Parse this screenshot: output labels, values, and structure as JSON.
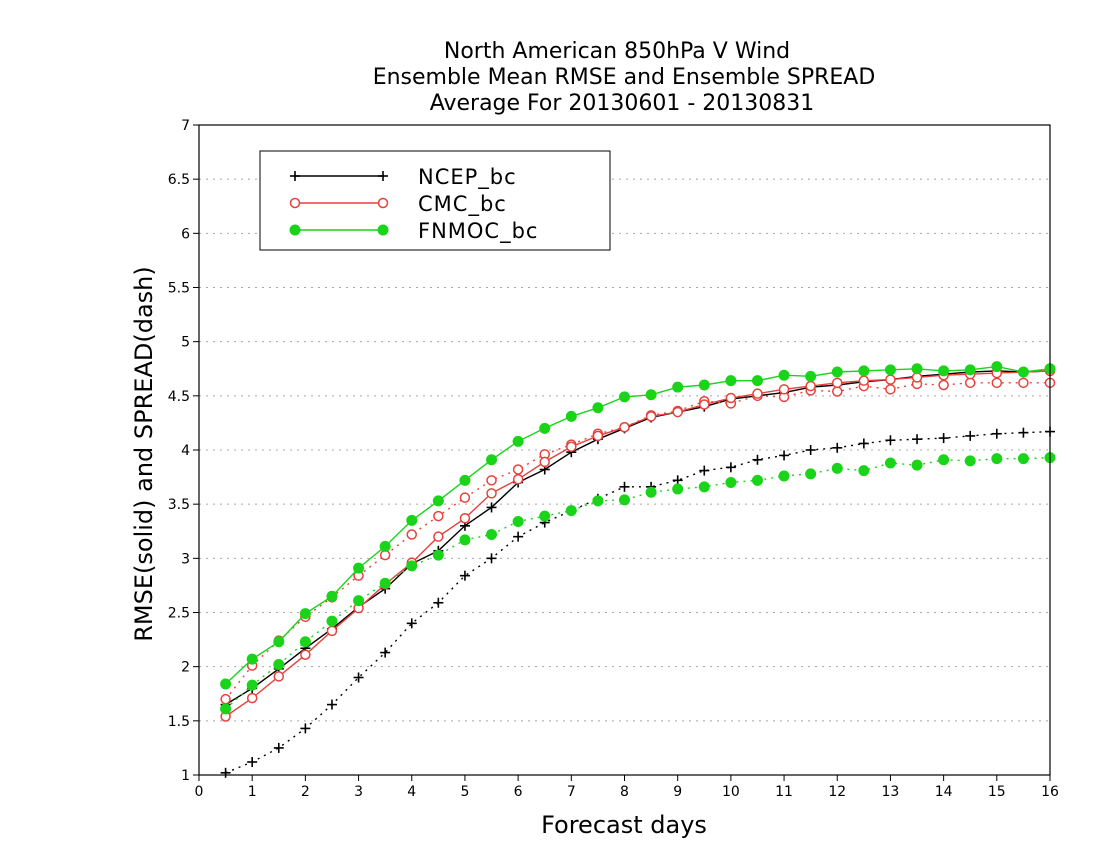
{
  "title_lines": [
    "North American 850hPa V Wind",
    "Ensemble Mean RMSE and Ensemble SPREAD",
    "Average For 20130601 - 20130831"
  ],
  "chart_data": {
    "type": "line",
    "title": "North American 850hPa V Wind / Ensemble Mean RMSE and Ensemble SPREAD / Average For 20130601 - 20130831",
    "xlabel": "Forecast days",
    "ylabel": "RMSE(solid) and SPREAD(dash)",
    "xlim": [
      0,
      16
    ],
    "ylim": [
      1,
      7
    ],
    "x_ticks": [
      "0",
      "1",
      "2",
      "3",
      "4",
      "5",
      "6",
      "7",
      "8",
      "9",
      "10",
      "11",
      "12",
      "13",
      "14",
      "15",
      "16"
    ],
    "y_ticks": [
      "1",
      "1.5",
      "2",
      "2.5",
      "3",
      "3.5",
      "4",
      "4.5",
      "5",
      "5.5",
      "6",
      "6.5",
      "7"
    ],
    "grid": "horizontal dotted",
    "legend_position": "top-left",
    "x": [
      0.5,
      1,
      1.5,
      2,
      2.5,
      3,
      3.5,
      4,
      4.5,
      5,
      5.5,
      6,
      6.5,
      7,
      7.5,
      8,
      8.5,
      9,
      9.5,
      10,
      10.5,
      11,
      11.5,
      12,
      12.5,
      13,
      13.5,
      14,
      14.5,
      15,
      15.5,
      16
    ],
    "series": [
      {
        "name": "NCEP_bc",
        "color": "#000000",
        "marker": "plus",
        "rmse": [
          1.65,
          1.8,
          1.98,
          2.17,
          2.35,
          2.55,
          2.72,
          2.95,
          3.07,
          3.3,
          3.47,
          3.7,
          3.82,
          3.98,
          4.1,
          4.2,
          4.3,
          4.35,
          4.4,
          4.47,
          4.5,
          4.53,
          4.58,
          4.6,
          4.63,
          4.65,
          4.68,
          4.7,
          4.72,
          4.73,
          4.72,
          4.73
        ],
        "spread": [
          1.02,
          1.12,
          1.25,
          1.43,
          1.65,
          1.9,
          2.13,
          2.4,
          2.59,
          2.84,
          3.0,
          3.2,
          3.33,
          3.44,
          3.55,
          3.66,
          3.66,
          3.72,
          3.81,
          3.84,
          3.91,
          3.95,
          4.0,
          4.02,
          4.06,
          4.09,
          4.1,
          4.11,
          4.13,
          4.15,
          4.16,
          4.17
        ]
      },
      {
        "name": "CMC_bc",
        "color": "#e8413c",
        "marker": "open-circle",
        "rmse": [
          1.54,
          1.71,
          1.91,
          2.11,
          2.33,
          2.54,
          2.76,
          2.96,
          3.2,
          3.37,
          3.6,
          3.73,
          3.89,
          4.03,
          4.13,
          4.21,
          4.31,
          4.35,
          4.42,
          4.48,
          4.52,
          4.56,
          4.59,
          4.62,
          4.64,
          4.65,
          4.67,
          4.69,
          4.7,
          4.71,
          4.72,
          4.73
        ],
        "spread": [
          1.7,
          2.01,
          2.24,
          2.46,
          2.64,
          2.84,
          3.03,
          3.22,
          3.39,
          3.56,
          3.72,
          3.82,
          3.96,
          4.05,
          4.15,
          4.21,
          4.32,
          4.36,
          4.45,
          4.43,
          4.5,
          4.49,
          4.55,
          4.54,
          4.59,
          4.56,
          4.61,
          4.6,
          4.62,
          4.62,
          4.62,
          4.62
        ]
      },
      {
        "name": "FNMOC_bc",
        "color": "#19d419",
        "marker": "filled-circle",
        "rmse": [
          1.84,
          2.07,
          2.23,
          2.49,
          2.65,
          2.91,
          3.11,
          3.35,
          3.53,
          3.72,
          3.91,
          4.08,
          4.2,
          4.31,
          4.39,
          4.49,
          4.51,
          4.58,
          4.6,
          4.64,
          4.64,
          4.69,
          4.68,
          4.72,
          4.73,
          4.74,
          4.75,
          4.73,
          4.74,
          4.77,
          4.72,
          4.75
        ],
        "spread": [
          1.61,
          1.83,
          2.02,
          2.23,
          2.42,
          2.61,
          2.77,
          2.93,
          3.03,
          3.17,
          3.22,
          3.34,
          3.39,
          3.44,
          3.53,
          3.54,
          3.61,
          3.64,
          3.66,
          3.7,
          3.72,
          3.76,
          3.78,
          3.83,
          3.81,
          3.88,
          3.86,
          3.91,
          3.9,
          3.92,
          3.92,
          3.93
        ]
      }
    ]
  }
}
